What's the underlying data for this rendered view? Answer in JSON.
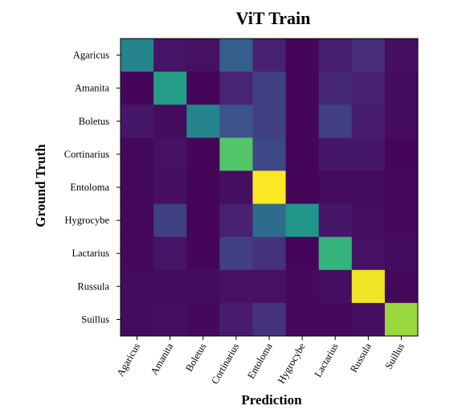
{
  "chart_data": {
    "type": "heatmap",
    "title": "ViT Train",
    "xlabel": "Prediction",
    "ylabel": "Ground Truth",
    "x_categories": [
      "Agaricus",
      "Amanita",
      "Boletus",
      "Cortinarius",
      "Entoloma",
      "Hygrocybe",
      "Lactarius",
      "Russula",
      "Suillus"
    ],
    "y_categories": [
      "Agaricus",
      "Amanita",
      "Boletus",
      "Cortinarius",
      "Entoloma",
      "Hygrocybe",
      "Lactarius",
      "Russula",
      "Suillus"
    ],
    "colormap": "viridis",
    "value_range": [
      0,
      1
    ],
    "values": [
      [
        0.45,
        0.07,
        0.06,
        0.3,
        0.12,
        0.02,
        0.11,
        0.15,
        0.05
      ],
      [
        0.02,
        0.55,
        0.02,
        0.13,
        0.2,
        0.02,
        0.14,
        0.12,
        0.04
      ],
      [
        0.08,
        0.04,
        0.45,
        0.25,
        0.2,
        0.02,
        0.2,
        0.1,
        0.04
      ],
      [
        0.03,
        0.06,
        0.02,
        0.73,
        0.22,
        0.02,
        0.08,
        0.08,
        0.02
      ],
      [
        0.03,
        0.05,
        0.02,
        0.05,
        1.0,
        0.02,
        0.04,
        0.04,
        0.03
      ],
      [
        0.03,
        0.2,
        0.02,
        0.12,
        0.35,
        0.52,
        0.08,
        0.05,
        0.03
      ],
      [
        0.03,
        0.07,
        0.02,
        0.2,
        0.17,
        0.02,
        0.66,
        0.06,
        0.04
      ],
      [
        0.04,
        0.04,
        0.04,
        0.06,
        0.06,
        0.03,
        0.05,
        0.98,
        0.03
      ],
      [
        0.04,
        0.05,
        0.03,
        0.1,
        0.17,
        0.03,
        0.03,
        0.05,
        0.85
      ]
    ]
  }
}
